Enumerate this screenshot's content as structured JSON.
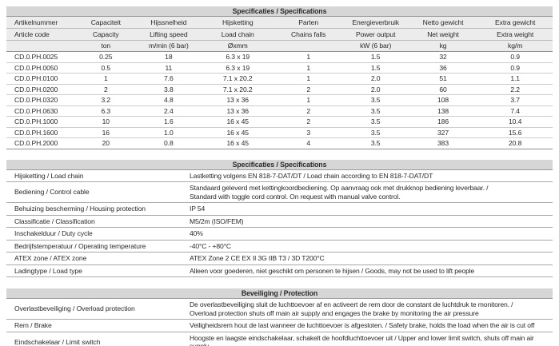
{
  "table1": {
    "title": "Specificaties / Specifications",
    "header_nl": [
      "Artikelnummer",
      "Capaciteit",
      "Hijssnelheid",
      "Hijsketting",
      "Parten",
      "Energieverbruik",
      "Netto gewicht",
      "Extra gewicht"
    ],
    "header_en": [
      "Article code",
      "Capacity",
      "Lifting speed",
      "Load chain",
      "Chains falls",
      "Power output",
      "Net weight",
      "Extra weight"
    ],
    "units": [
      "",
      "ton",
      "m/min (6 bar)",
      "Øxmm",
      "",
      "kW (6 bar)",
      "kg",
      "kg/m"
    ],
    "rows": [
      [
        "CD.0.PH.0025",
        "0.25",
        "18",
        "6.3 x 19",
        "1",
        "1.5",
        "32",
        "0.9"
      ],
      [
        "CD.0.PH.0050",
        "0.5",
        "11",
        "6.3 x 19",
        "1",
        "1.5",
        "36",
        "0.9"
      ],
      [
        "CD.0.PH.0100",
        "1",
        "7.6",
        "7.1 x 20.2",
        "1",
        "2.0",
        "51",
        "1.1"
      ],
      [
        "CD.0.PH.0200",
        "2",
        "3.8",
        "7.1 x 20.2",
        "2",
        "2.0",
        "60",
        "2.2"
      ],
      [
        "CD.0.PH.0320",
        "3.2",
        "4.8",
        "13 x 36",
        "1",
        "3.5",
        "108",
        "3.7"
      ],
      [
        "CD.0.PH.0630",
        "6.3",
        "2.4",
        "13 x 36",
        "2",
        "3.5",
        "138",
        "7.4"
      ],
      [
        "CD.0.PH.1000",
        "10",
        "1.6",
        "16 x 45",
        "2",
        "3.5",
        "186",
        "10.4"
      ],
      [
        "CD.0.PH.1600",
        "16",
        "1.0",
        "16 x 45",
        "3",
        "3.5",
        "327",
        "15.6"
      ],
      [
        "CD.0.PH.2000",
        "20",
        "0.8",
        "16 x 45",
        "4",
        "3.5",
        "383",
        "20.8"
      ]
    ]
  },
  "table2": {
    "title": "Specificaties / Specifications",
    "rows": [
      {
        "label": "Hijsketting / Load chain",
        "value": "Lastketting volgens EN 818-7-DAT/DT / Load chain according to EN 818-7-DAT/DT"
      },
      {
        "label": "Bediening / Control cable",
        "value": "Standaard geleverd met kettingkoordbediening. Op aanvraag ook met drukknop bediening leverbaar. /\nStandard with toggle cord control. On request with manual valve control."
      },
      {
        "label": "Behuizing bescherming / Housing protection",
        "value": "IP 54"
      },
      {
        "label": "Classificatie / Classification",
        "value": "M5/2m (ISO/FEM)"
      },
      {
        "label": "Inschakelduur / Duty cycle",
        "value": "40%"
      },
      {
        "label": "Bedrijfstemperatuur / Operating temperature",
        "value": "-40°C  -  +80°C"
      },
      {
        "label": "ATEX zone / ATEX zone",
        "value": "ATEX Zone 2 CE EX II 3G IIB T3 / 3D T200°C"
      },
      {
        "label": "Ladingtype / Load type",
        "value": "Alleen voor goederen, niet geschikt om personen te hijsen / Goods, may not be used to lift people"
      }
    ]
  },
  "table3": {
    "title": "Beveiliging / Protection",
    "rows": [
      {
        "label": "Overlastbeveiliging / Overload protection",
        "value": "De overlastbeveiliging sluit de luchttoevoer af en activeert de rem door de constant de luchtdruk te monitoren. /\nOverload protection shuts off main air supply and engages the brake by monitoring the air pressure"
      },
      {
        "label": "Rem / Brake",
        "value": "Veiligheidsrem hout de last wanneer de luchttoevoer is afgesloten. / Safety brake, holds the load when the air is cut off"
      },
      {
        "label": "Eindschakelaar / Limit switch",
        "value": "Hoogste en laagste eindschakelaar, schakelt de hoofdluchttoevoer uit / Upper and lower limit switch, shuts off main air supply"
      }
    ]
  },
  "colors": {
    "title_bar_bg": "#d6d6d6",
    "header_row_bg": "#ececec",
    "row_divider": "#cccccc",
    "section_divider": "#8f8f8f",
    "kv_divider": "#a8a8a8",
    "text": "#2b2b2b"
  }
}
